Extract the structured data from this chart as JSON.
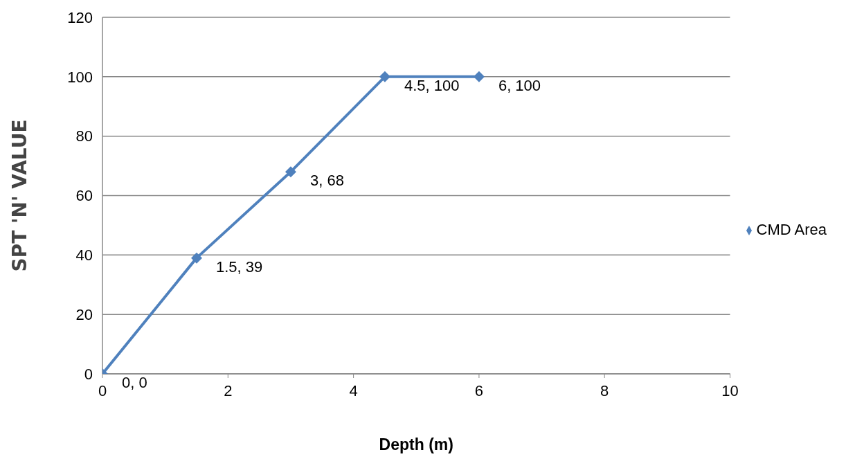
{
  "chart_data": {
    "type": "line",
    "xlabel": "Depth (m)",
    "ylabel": "SPT 'N' VALUE",
    "x": [
      0,
      1.5,
      3,
      4.5,
      6
    ],
    "series": [
      {
        "name": "CMD Area",
        "color": "#4f81bd",
        "values": [
          0,
          39,
          68,
          100,
          100
        ],
        "value_labels": [
          "0, 0",
          "1.5, 39",
          "3, 68",
          "4.5, 100",
          "6, 100"
        ]
      }
    ],
    "xlim": [
      0,
      10
    ],
    "xticks": [
      0,
      2,
      4,
      6,
      8,
      10
    ],
    "ylim": [
      0,
      120
    ],
    "yticks": [
      0,
      20,
      40,
      60,
      80,
      100,
      120
    ],
    "grid": "y",
    "legend": "right",
    "marker": "diamond",
    "line_style": "solid"
  }
}
